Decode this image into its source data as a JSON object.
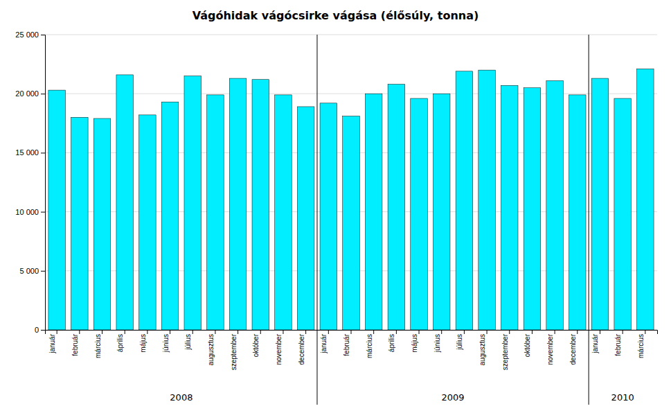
{
  "chart_data": {
    "type": "bar",
    "title": "Vágóhidak vágócsirke vágása (élősúly, tonna)",
    "categories": [
      "január",
      "február",
      "március",
      "április",
      "május",
      "június",
      "július",
      "augusztus",
      "szeptember",
      "október",
      "november",
      "december",
      "január",
      "február",
      "március",
      "április",
      "május",
      "június",
      "július",
      "augusztus",
      "szeptember",
      "október",
      "november",
      "december",
      "január",
      "február",
      "március"
    ],
    "values": [
      20300,
      18000,
      17900,
      21600,
      18200,
      19300,
      21500,
      19900,
      21300,
      21200,
      19900,
      18900,
      19200,
      18100,
      20000,
      20800,
      19600,
      20000,
      21900,
      22000,
      20700,
      20500,
      21100,
      19900,
      21300,
      19600,
      22100
    ],
    "color": "#00EEFF",
    "ylim": [
      0,
      25000
    ],
    "yticks": [
      0,
      {
        "value": 5000,
        "label": "5 000"
      },
      {
        "value": 10000,
        "label": "10 000"
      },
      {
        "value": 15000,
        "label": "15 000"
      },
      {
        "value": 20000,
        "label": "20 000"
      },
      {
        "value": 25000,
        "label": "25 000"
      }
    ],
    "grid": true,
    "annotations": [
      "2008",
      "2009",
      "2010"
    ]
  }
}
